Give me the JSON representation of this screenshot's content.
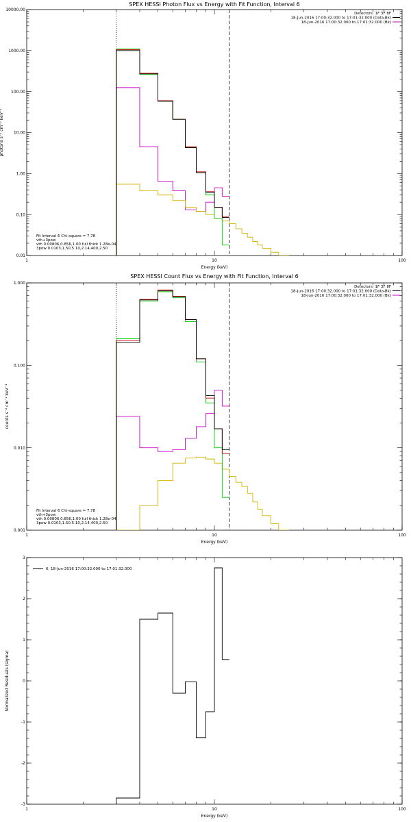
{
  "colors": {
    "axis": "#000000",
    "data": "#000000",
    "total_fit": "#c00000",
    "vth": "#00cc00",
    "powerlaw": "#d4b400",
    "background": "#cc00cc"
  },
  "chart_data": [
    {
      "type": "line",
      "step": true,
      "title": "SPEX HESSI Photon Flux vs Energy with Fit Function, Interval 6",
      "xlabel": "Energy (keV)",
      "ylabel": "photons s⁻¹ cm⁻² keV⁻¹",
      "xscale": "log",
      "yscale": "log",
      "xlim": [
        1,
        100
      ],
      "ylim": [
        0.01,
        10000
      ],
      "xticks": [
        {
          "v": 1,
          "t": "1"
        },
        {
          "v": 10,
          "t": "10"
        },
        {
          "v": 100,
          "t": "100"
        }
      ],
      "yticks": [
        {
          "v": 0.01,
          "t": "0.01"
        },
        {
          "v": 0.1,
          "t": "0.10"
        },
        {
          "v": 1,
          "t": "1.00"
        },
        {
          "v": 10,
          "t": "10.00"
        },
        {
          "v": 100,
          "t": "100.00"
        },
        {
          "v": 1000,
          "t": "1000.00"
        },
        {
          "v": 10000,
          "t": "10000.00"
        }
      ],
      "vlines": [
        {
          "x": 3.0,
          "style": "dotted"
        },
        {
          "x": 12.0,
          "style": "dashed"
        }
      ],
      "info_lines": [
        "Detectors: 1F 3F 8F",
        "18-Jun-2016 17:00:32.000 to 17:01:32.000 (Data-Bk)",
        "18-Jun-2016 17:00:32.000 to 17:01:32.000 (Bk)"
      ],
      "info_colors": [
        "",
        "#000000",
        "#cc00cc"
      ],
      "legend": [
        {
          "text": "Fit Interval 6   Chi-square = 7.78",
          "color": ""
        },
        {
          "text": "vth+3pow",
          "color": "#c00000"
        },
        {
          "text": "vth 0.00806,0.856,1.00  full thick 1.28e-04",
          "color": "#00cc00"
        },
        {
          "text": "3pow 0.0103,1.50,5.10,2.14,400,2.50",
          "color": "#d4b400"
        }
      ],
      "series": [
        {
          "name": "Data-Bk",
          "color": "#000000",
          "edges": [
            3,
            4,
            5,
            6,
            7,
            8,
            9,
            10,
            11,
            12
          ],
          "values": [
            1000,
            270,
            58,
            21,
            4.3,
            1.05,
            0.35,
            0.15,
            0.085
          ]
        },
        {
          "name": "vth+3pow",
          "color": "#c00000",
          "edges": [
            3,
            4,
            5,
            6,
            7,
            8,
            9,
            10,
            11,
            12
          ],
          "values": [
            1050,
            280,
            60,
            21,
            4.5,
            1.1,
            0.36,
            0.15,
            0.09
          ]
        },
        {
          "name": "vth",
          "color": "#00cc00",
          "edges": [
            3,
            4,
            5,
            6,
            7,
            8,
            9,
            10,
            11,
            12
          ],
          "values": [
            1100,
            260,
            58,
            21,
            4.3,
            1.05,
            0.3,
            0.08,
            0.018
          ]
        },
        {
          "name": "3pow",
          "color": "#d4b400",
          "edges": [
            3,
            4,
            5,
            6,
            7,
            8,
            9,
            10,
            11,
            12,
            13,
            14,
            15,
            16,
            17,
            18,
            20,
            22,
            25
          ],
          "values": [
            0.55,
            0.38,
            0.3,
            0.22,
            0.15,
            0.12,
            0.1,
            0.08,
            0.07,
            0.06,
            0.045,
            0.035,
            0.028,
            0.022,
            0.018,
            0.015,
            0.012,
            0.01
          ]
        },
        {
          "name": "Bk",
          "color": "#cc00cc",
          "edges": [
            3,
            4,
            5,
            6,
            7,
            8,
            9,
            10,
            11,
            12
          ],
          "values": [
            125,
            4.5,
            0.65,
            0.38,
            0.13,
            0.12,
            0.2,
            0.45,
            0.28
          ]
        }
      ]
    },
    {
      "type": "line",
      "step": true,
      "title": "SPEX HESSI Count Flux vs Energy with Fit Function, Interval 6",
      "xlabel": "Energy (keV)",
      "ylabel": "counts s⁻¹ cm⁻² keV⁻¹",
      "xscale": "log",
      "yscale": "log",
      "xlim": [
        1,
        100
      ],
      "ylim": [
        0.001,
        1
      ],
      "xticks": [
        {
          "v": 1,
          "t": "1"
        },
        {
          "v": 10,
          "t": "10"
        },
        {
          "v": 100,
          "t": "100"
        }
      ],
      "yticks": [
        {
          "v": 0.001,
          "t": "0.001"
        },
        {
          "v": 0.01,
          "t": "0.010"
        },
        {
          "v": 0.1,
          "t": "0.100"
        },
        {
          "v": 1,
          "t": "1.000"
        }
      ],
      "vlines": [
        {
          "x": 3.0,
          "style": "dotted"
        },
        {
          "x": 12.0,
          "style": "dashed"
        }
      ],
      "info_lines": [
        "Detectors: 1F 3F 8F",
        "18-Jun-2016 17:00:32.000 to 17:01:32.000 (Data-Bk)",
        "18-Jun-2016 17:00:32.000 to 17:01:32.000 (Bk)"
      ],
      "info_colors": [
        "",
        "#000000",
        "#cc00cc"
      ],
      "legend": [
        {
          "text": "Fit Interval 6   Chi-square = 7.78",
          "color": ""
        },
        {
          "text": "vth+3pow",
          "color": "#c00000"
        },
        {
          "text": "vth 0.00806,0.856,1.00  full thick 1.28e-04",
          "color": "#00cc00"
        },
        {
          "text": "3pow 0.0103,1.50,5.10,2.14,400,2.50",
          "color": "#d4b400"
        }
      ],
      "series": [
        {
          "name": "Data-Bk",
          "color": "#000000",
          "edges": [
            3,
            4,
            5,
            6,
            7,
            8,
            9,
            10,
            11,
            12
          ],
          "values": [
            0.19,
            0.62,
            0.8,
            0.68,
            0.36,
            0.12,
            0.043,
            0.017,
            0.0095
          ]
        },
        {
          "name": "vth+3pow",
          "color": "#c00000",
          "edges": [
            3,
            4,
            5,
            6,
            7,
            8,
            9,
            10,
            11,
            12
          ],
          "values": [
            0.2,
            0.63,
            0.82,
            0.69,
            0.36,
            0.12,
            0.04,
            0.017,
            0.0085
          ]
        },
        {
          "name": "vth",
          "color": "#00cc00",
          "edges": [
            3,
            4,
            5,
            6,
            7,
            8,
            9,
            10,
            11,
            12
          ],
          "values": [
            0.21,
            0.6,
            0.78,
            0.66,
            0.34,
            0.11,
            0.035,
            0.01,
            0.0025
          ]
        },
        {
          "name": "3pow",
          "color": "#d4b400",
          "edges": [
            3,
            4,
            5,
            6,
            7,
            8,
            9,
            10,
            11,
            12,
            13,
            14,
            15,
            16,
            17,
            18,
            20,
            22,
            25
          ],
          "values": [
            0.001,
            0.002,
            0.004,
            0.0065,
            0.0075,
            0.0077,
            0.0073,
            0.0065,
            0.0055,
            0.0045,
            0.0038,
            0.0034,
            0.0028,
            0.0022,
            0.0018,
            0.0015,
            0.0012,
            0.001
          ]
        },
        {
          "name": "Bk",
          "color": "#cc00cc",
          "edges": [
            3,
            4,
            5,
            6,
            7,
            8,
            9,
            10,
            11,
            12
          ],
          "values": [
            0.024,
            0.01,
            0.009,
            0.0095,
            0.013,
            0.018,
            0.026,
            0.05,
            0.032
          ]
        }
      ]
    },
    {
      "type": "line",
      "step": true,
      "title": "",
      "xlabel": "Energy (keV)",
      "ylabel": "Normalized Residuals (sigma)",
      "xscale": "log",
      "yscale": "linear",
      "xlim": [
        1,
        100
      ],
      "ylim": [
        -3,
        3
      ],
      "xticks": [
        {
          "v": 1,
          "t": "1"
        },
        {
          "v": 10,
          "t": "10"
        },
        {
          "v": 100,
          "t": "100"
        }
      ],
      "yticks": [
        {
          "v": -3,
          "t": "-3"
        },
        {
          "v": -2,
          "t": "-2"
        },
        {
          "v": -1,
          "t": "-1"
        },
        {
          "v": 0,
          "t": "0"
        },
        {
          "v": 1,
          "t": "1"
        },
        {
          "v": 2,
          "t": "2"
        },
        {
          "v": 3,
          "t": "3"
        }
      ],
      "vlines": [],
      "info_lines": [],
      "info_colors": [],
      "legend": [
        {
          "text": "6, 18-Jun-2016 17:00:32.000 to 17:01:32.000",
          "color": "#000000"
        }
      ],
      "series": [
        {
          "name": "6, 18-Jun-2016 17:00:32.000 to 17:01:32.000",
          "color": "#000000",
          "edges": [
            3,
            4,
            5,
            6,
            7,
            8,
            9,
            10,
            11,
            12
          ],
          "values": [
            -2.85,
            1.5,
            1.65,
            -0.3,
            -0.02,
            -1.38,
            -0.75,
            2.75,
            0.52
          ]
        }
      ]
    }
  ]
}
